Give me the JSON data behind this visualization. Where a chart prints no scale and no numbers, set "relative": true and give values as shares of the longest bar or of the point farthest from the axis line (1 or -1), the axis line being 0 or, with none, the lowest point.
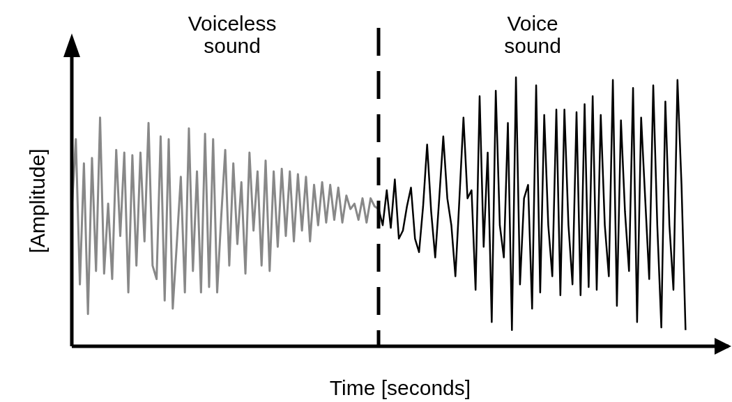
{
  "chart_data": {
    "type": "line",
    "relative": true,
    "xlabel": "Time [seconds]",
    "ylabel": "[Amplitude]",
    "grid": false,
    "legend": false,
    "marker": "none",
    "line_style": "solid",
    "annotations": [
      "Voiceless\nsound",
      "Voice\nsound"
    ],
    "categories": [
      null,
      null,
      null,
      null,
      null,
      null,
      null,
      null,
      null,
      null,
      null,
      null,
      null,
      null,
      null,
      null,
      null,
      null,
      null,
      null,
      null,
      null,
      null,
      null,
      null,
      null,
      null,
      null,
      null,
      null,
      null,
      null,
      null,
      null,
      null,
      null,
      null,
      null,
      null,
      null,
      null,
      null,
      null,
      null,
      null,
      null,
      null,
      null,
      null,
      null,
      null,
      null,
      null,
      null,
      null,
      null,
      null,
      null,
      null,
      null,
      null,
      null,
      null,
      null,
      null,
      null,
      null,
      null,
      null,
      null,
      null,
      null,
      null,
      null,
      null,
      null,
      null,
      null,
      null,
      null,
      null,
      null,
      null,
      null,
      null,
      null,
      null,
      null,
      null,
      null,
      null,
      null,
      null,
      null,
      null,
      null,
      null,
      null,
      null,
      null,
      null,
      null,
      null,
      null,
      null,
      null,
      null,
      null,
      null,
      null,
      null,
      null,
      null,
      null,
      null,
      null,
      null,
      null,
      null,
      null,
      null,
      null,
      null,
      null,
      null,
      null,
      null,
      null,
      null,
      null,
      null,
      null,
      null,
      null,
      null,
      null,
      null,
      null,
      null,
      null,
      null,
      null,
      null,
      null,
      null,
      null,
      null,
      null,
      null,
      null,
      null,
      null,
      null
    ],
    "series": [
      {
        "color": "#888888",
        "values": [
          0.51,
          0.77,
          0.23,
          0.68,
          0.12,
          0.7,
          0.28,
          0.85,
          0.27,
          0.53,
          0.25,
          0.73,
          0.41,
          0.72,
          0.2,
          0.71,
          0.3,
          0.72,
          0.39,
          0.83,
          0.3,
          0.25,
          0.78,
          0.17,
          0.77,
          0.14,
          0.38,
          0.63,
          0.2,
          0.81,
          0.28,
          0.65,
          0.2,
          0.79,
          0.22,
          0.77,
          0.2,
          0.48,
          0.73,
          0.3,
          0.68,
          0.38,
          0.61,
          0.27,
          0.72,
          0.43,
          0.65,
          0.3,
          0.69,
          0.28,
          0.65,
          0.37,
          0.66,
          0.41,
          0.65,
          0.39,
          0.64,
          0.43,
          0.63,
          0.39,
          0.6,
          0.45,
          0.61,
          0.46,
          0.6,
          0.47,
          0.59,
          0.46,
          0.56,
          0.51,
          0.53,
          0.47,
          0.55,
          0.46,
          0.55,
          0.52,
          0.51,
          null,
          null,
          null,
          null,
          null,
          null,
          null,
          null,
          null,
          null,
          null,
          null,
          null,
          null,
          null,
          null,
          null,
          null,
          null,
          null,
          null,
          null,
          null,
          null,
          null,
          null,
          null,
          null,
          null,
          null,
          null,
          null,
          null,
          null,
          null,
          null,
          null,
          null,
          null,
          null,
          null,
          null,
          null,
          null,
          null,
          null,
          null,
          null,
          null,
          null,
          null,
          null,
          null,
          null,
          null,
          null,
          null,
          null,
          null,
          null,
          null,
          null,
          null,
          null,
          null,
          null,
          null,
          null,
          null,
          null,
          null,
          null,
          null,
          null,
          null,
          null
        ]
      },
      {
        "color": "#000000",
        "values": [
          null,
          null,
          null,
          null,
          null,
          null,
          null,
          null,
          null,
          null,
          null,
          null,
          null,
          null,
          null,
          null,
          null,
          null,
          null,
          null,
          null,
          null,
          null,
          null,
          null,
          null,
          null,
          null,
          null,
          null,
          null,
          null,
          null,
          null,
          null,
          null,
          null,
          null,
          null,
          null,
          null,
          null,
          null,
          null,
          null,
          null,
          null,
          null,
          null,
          null,
          null,
          null,
          null,
          null,
          null,
          null,
          null,
          null,
          null,
          null,
          null,
          null,
          null,
          null,
          null,
          null,
          null,
          null,
          null,
          null,
          null,
          null,
          null,
          null,
          null,
          null,
          0.51,
          0.45,
          0.58,
          0.44,
          0.62,
          0.4,
          0.43,
          0.52,
          0.59,
          0.4,
          0.35,
          0.52,
          0.75,
          0.5,
          0.33,
          0.55,
          0.78,
          0.55,
          0.45,
          0.26,
          0.55,
          0.85,
          0.55,
          0.58,
          0.21,
          0.93,
          0.37,
          0.72,
          0.09,
          0.95,
          0.45,
          0.33,
          0.83,
          0.06,
          1.0,
          0.23,
          0.55,
          0.6,
          0.14,
          0.97,
          0.2,
          0.86,
          0.45,
          0.26,
          0.88,
          0.19,
          0.88,
          0.45,
          0.23,
          0.87,
          0.19,
          0.9,
          0.22,
          0.93,
          0.21,
          0.86,
          0.45,
          0.26,
          0.99,
          0.15,
          0.84,
          0.5,
          0.28,
          0.96,
          0.09,
          0.85,
          0.55,
          0.25,
          0.97,
          0.45,
          0.07,
          0.91,
          0.45,
          0.21,
          0.99,
          0.6,
          0.06
        ]
      }
    ]
  }
}
